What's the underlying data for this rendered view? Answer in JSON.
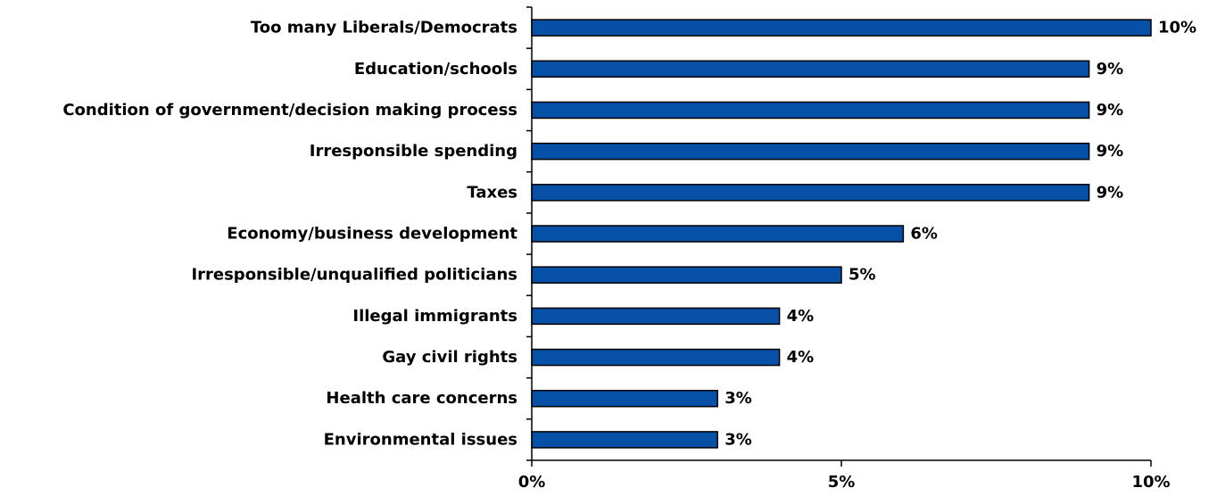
{
  "chart_data": {
    "type": "bar",
    "orientation": "horizontal",
    "categories": [
      "Too many Liberals/Democrats",
      "Education/schools",
      "Condition of government/decision making process",
      "Irresponsible spending",
      "Taxes",
      "Economy/business development",
      "Irresponsible/unqualified politicians",
      "Illegal immigrants",
      "Gay civil rights",
      "Health care concerns",
      "Environmental issues"
    ],
    "values": [
      10,
      9,
      9,
      9,
      9,
      6,
      5,
      4,
      4,
      3,
      3
    ],
    "value_labels": [
      "10%",
      "9%",
      "9%",
      "9%",
      "9%",
      "6%",
      "5%",
      "4%",
      "4%",
      "3%",
      "3%"
    ],
    "xlim": [
      0,
      10
    ],
    "x_ticks": [
      0,
      5,
      10
    ],
    "x_tick_labels": [
      "0%",
      "5%",
      "10%"
    ],
    "title": "",
    "xlabel": "",
    "ylabel": "",
    "grid": false,
    "bar_color": "#0650A8"
  }
}
